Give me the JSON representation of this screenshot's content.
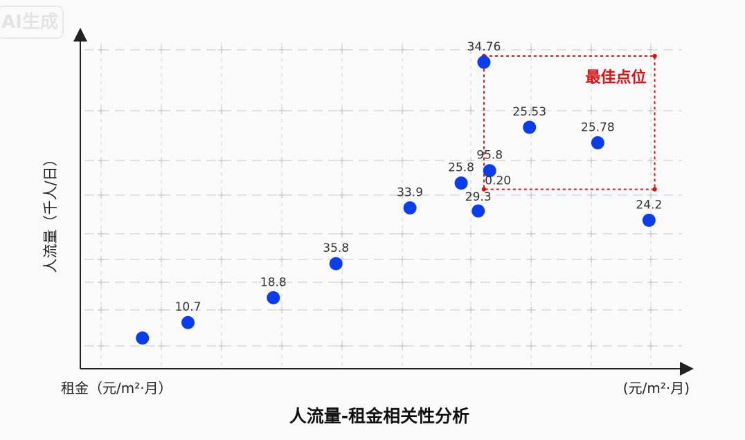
{
  "watermark": "AI生成",
  "chart_data": {
    "type": "scatter",
    "title": "人流量-租金相关性分析",
    "xlabel_left": "租金（元/m²·月）",
    "xlabel_right": "(元/m²·月)",
    "ylabel": "人流量（千人/日）",
    "xlim": [
      0,
      100
    ],
    "ylim": [
      0,
      100
    ],
    "grid": true,
    "point_color": "#0a3df0",
    "highlight_color": "#e01010",
    "points": [
      {
        "x": 8,
        "y": 7,
        "label": ""
      },
      {
        "x": 16,
        "y": 12,
        "label": "10.7"
      },
      {
        "x": 31,
        "y": 20,
        "label": "18.8"
      },
      {
        "x": 42,
        "y": 31,
        "label": "35.8"
      },
      {
        "x": 55,
        "y": 49,
        "label": "33.9"
      },
      {
        "x": 64,
        "y": 57,
        "label": "25.8"
      },
      {
        "x": 67,
        "y": 48,
        "label": "29.3"
      },
      {
        "x": 69,
        "y": 61,
        "label": "95.8"
      },
      {
        "x": 68,
        "y": 96,
        "label": "34.76"
      },
      {
        "x": 76,
        "y": 75,
        "label": "25.53"
      },
      {
        "x": 88,
        "y": 70,
        "label": "25.78"
      },
      {
        "x": 97,
        "y": 45,
        "label": "24.2"
      }
    ],
    "extra_label": "0.20",
    "highlight": {
      "label": "最佳点位",
      "x_range": [
        68,
        98
      ],
      "y_range": [
        55,
        98
      ]
    }
  }
}
